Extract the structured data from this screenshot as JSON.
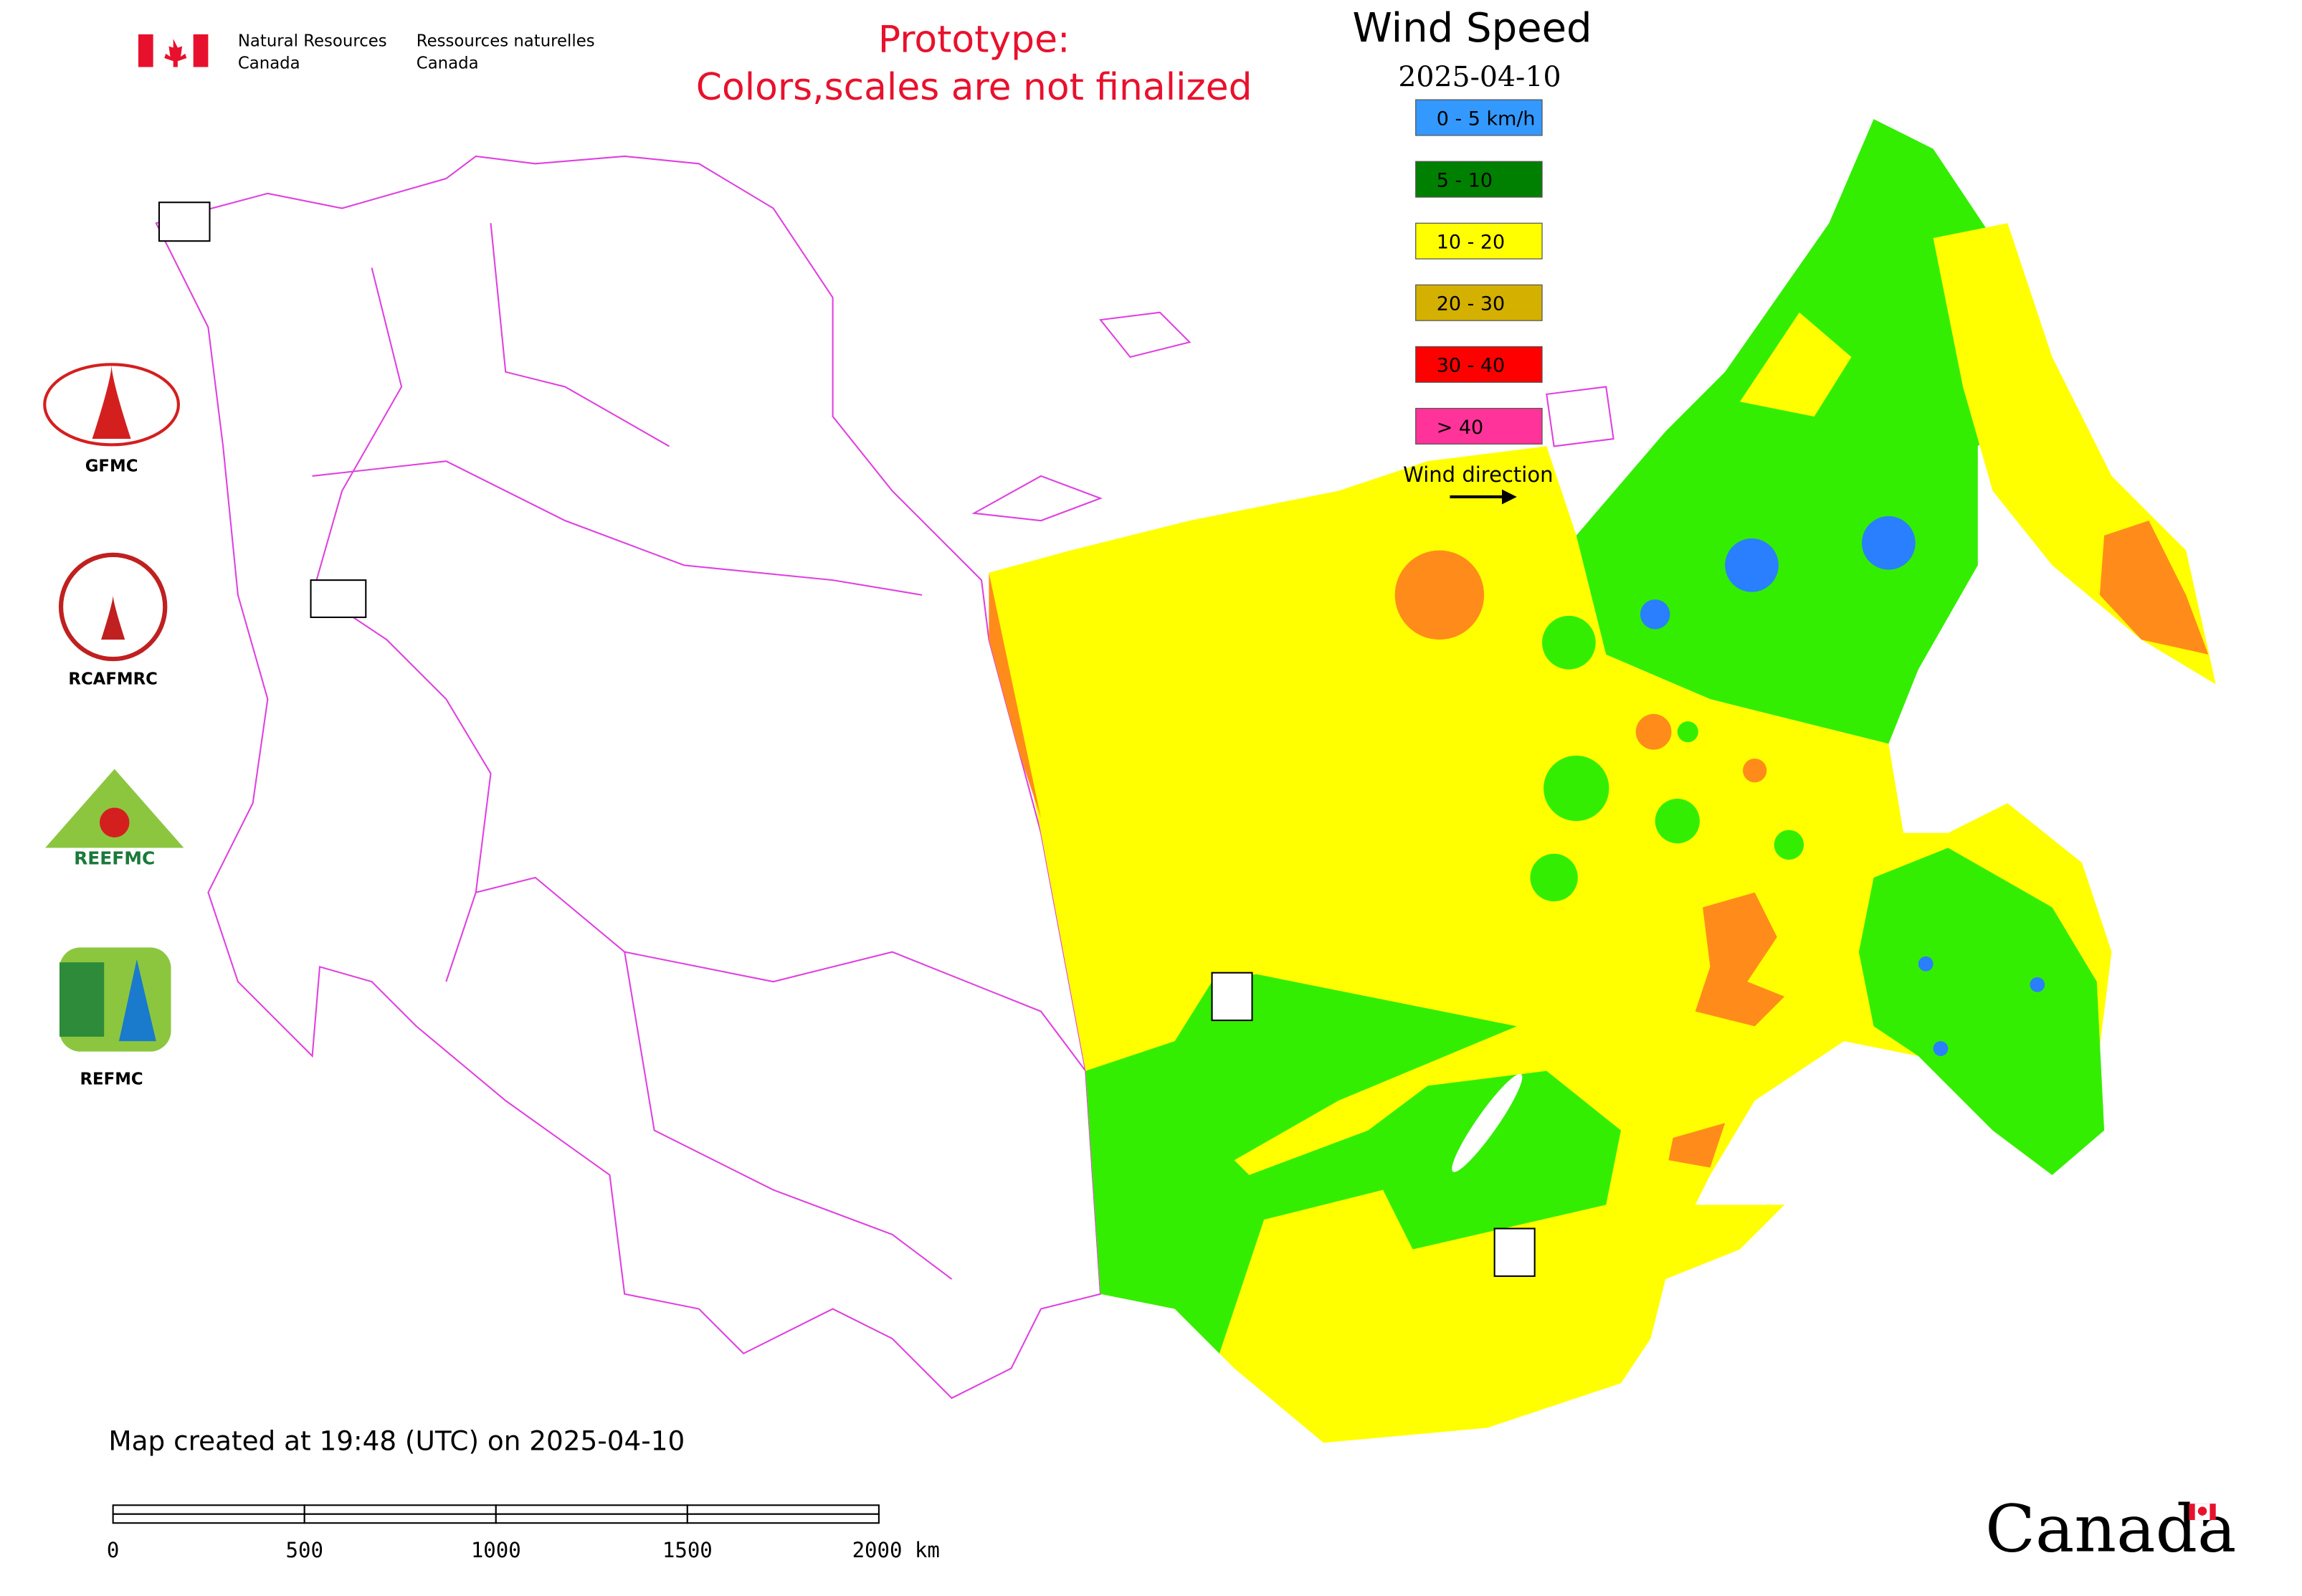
{
  "header": {
    "en": [
      "Natural Resources",
      "Canada"
    ],
    "fr": [
      "Ressources naturelles",
      "Canada"
    ]
  },
  "notice": [
    "Prototype:",
    "Colors,scales are not finalized"
  ],
  "title": "Wind Speed",
  "date": "2025-04-10",
  "legend": [
    {
      "label": "0 - 5 km/h",
      "color": "#3399ff"
    },
    {
      "label": "5 - 10",
      "color": "#008000"
    },
    {
      "label": "10 - 20",
      "color": "#ffff00"
    },
    {
      "label": "20 - 30",
      "color": "#d4b000"
    },
    {
      "label": "30 - 40",
      "color": "#ff0000"
    },
    {
      "label": "> 40",
      "color": "#ff3399"
    }
  ],
  "wind_direction": "Wind direction",
  "logos": [
    "GFMC",
    "RCAFMRC",
    "REEFMC",
    "REFMC"
  ],
  "footer": "Map created at 19:48 (UTC) on 2025-04-10",
  "scale_bar": [
    "0",
    "500",
    "1000",
    "1500",
    "2000 km"
  ],
  "wordmark": "Canada"
}
